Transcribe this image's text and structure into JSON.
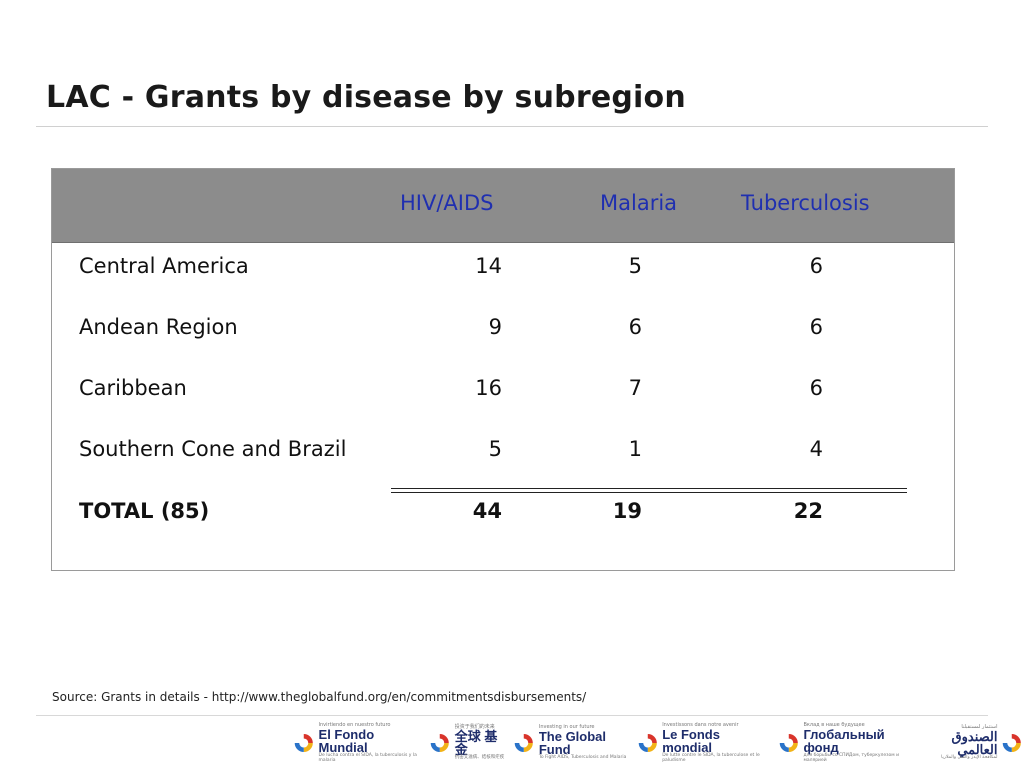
{
  "slide": {
    "title": "LAC - Grants by disease by subregion"
  },
  "table": {
    "columns": [
      "HIV/AIDS",
      "Malaria",
      "Tuberculosis"
    ],
    "rows": [
      {
        "label": "Central America",
        "values": [
          "14",
          "5",
          "6"
        ]
      },
      {
        "label": "Andean Region",
        "values": [
          "9",
          "6",
          "6"
        ]
      },
      {
        "label": "Caribbean",
        "values": [
          "16",
          "7",
          "6"
        ]
      },
      {
        "label": "Southern Cone and Brazil",
        "values": [
          "5",
          "1",
          "4"
        ]
      }
    ],
    "total": {
      "label": "TOTAL (85)",
      "values": [
        "44",
        "19",
        "22"
      ]
    }
  },
  "footer": {
    "source": "Source: Grants in details - http://www.theglobalfund.org/en/commitmentsdisbursements/",
    "logos": [
      {
        "main": "El Fondo Mundial",
        "small": "Invirtiendo en nuestro futuro",
        "sub": "De lucha contra el SIDA, la tuberculosis y la malaria"
      },
      {
        "main": "全球 基 金",
        "small": "投资于我们的未来",
        "sub": "抗击艾滋病、结核和疟疾"
      },
      {
        "main": "The Global Fund",
        "small": "Investing in our future",
        "sub": "To Fight AIDS, Tuberculosis and Malaria"
      },
      {
        "main": "Le Fonds mondial",
        "small": "Investissons dans notre avenir",
        "sub": "De lutte contre le SIDA, la tuberculose et le paludisme"
      },
      {
        "main": "Глобальный фонд",
        "small": "Вклад в наше будущее",
        "sub": "для борьбы со СПИДом, туберкулезом и малярией"
      },
      {
        "main": "الصندوق العالمي",
        "small": "استثمار لمستقبلنا",
        "sub": "لمكافحة الإيدز والسل والملاريا"
      }
    ]
  },
  "colors": {
    "header_band": "#8c8c8c",
    "header_text": "#1f2fb0",
    "swirl_red": "#d9342b",
    "swirl_yellow": "#f2b318",
    "swirl_blue": "#2a73c9"
  }
}
